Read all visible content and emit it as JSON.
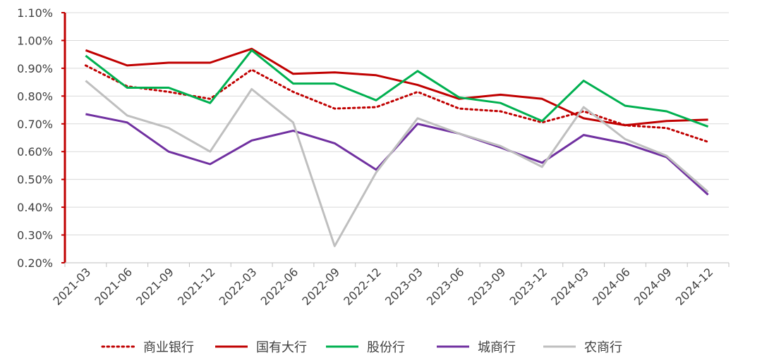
{
  "chart_data": {
    "type": "line",
    "title": "",
    "xlabel": "",
    "ylabel": "",
    "ylim": [
      0.2,
      1.1
    ],
    "y_tick_labels": [
      "0.20%",
      "0.30%",
      "0.40%",
      "0.50%",
      "0.60%",
      "0.70%",
      "0.80%",
      "0.90%",
      "1.00%",
      "1.10%"
    ],
    "y_tick_values": [
      0.2,
      0.3,
      0.4,
      0.5,
      0.6,
      0.7,
      0.8,
      0.9,
      1.0,
      1.1
    ],
    "grid": true,
    "legend_position": "bottom",
    "categories": [
      "2021-03",
      "2021-06",
      "2021-09",
      "2021-12",
      "2022-03",
      "2022-06",
      "2022-09",
      "2022-12",
      "2023-03",
      "2023-06",
      "2023-09",
      "2023-12",
      "2024-03",
      "2024-06",
      "2024-09",
      "2024-12"
    ],
    "series": [
      {
        "name": "商业银行",
        "color": "#c00000",
        "style": "dotted",
        "values": [
          0.91,
          0.835,
          0.815,
          0.79,
          0.895,
          0.815,
          0.755,
          0.76,
          0.815,
          0.755,
          0.745,
          0.705,
          0.745,
          0.695,
          0.685,
          0.635
        ]
      },
      {
        "name": "国有大行",
        "color": "#c00000",
        "style": "solid",
        "values": [
          0.965,
          0.91,
          0.92,
          0.92,
          0.97,
          0.88,
          0.885,
          0.875,
          0.84,
          0.79,
          0.805,
          0.79,
          0.72,
          0.695,
          0.71,
          0.715
        ]
      },
      {
        "name": "股份行",
        "color": "#00b050",
        "style": "solid",
        "values": [
          0.945,
          0.83,
          0.83,
          0.775,
          0.965,
          0.845,
          0.845,
          0.785,
          0.89,
          0.795,
          0.775,
          0.71,
          0.855,
          0.765,
          0.745,
          0.69
        ]
      },
      {
        "name": "城商行",
        "color": "#7030a0",
        "style": "solid",
        "values": [
          0.735,
          0.705,
          0.6,
          0.555,
          0.64,
          0.675,
          0.63,
          0.535,
          0.7,
          0.665,
          0.615,
          0.56,
          0.66,
          0.63,
          0.58,
          0.445
        ]
      },
      {
        "name": "农商行",
        "color": "#bfbfbf",
        "style": "solid",
        "values": [
          0.855,
          0.73,
          0.685,
          0.6,
          0.825,
          0.705,
          0.26,
          0.525,
          0.72,
          0.665,
          0.62,
          0.545,
          0.76,
          0.645,
          0.585,
          0.455
        ]
      }
    ]
  }
}
